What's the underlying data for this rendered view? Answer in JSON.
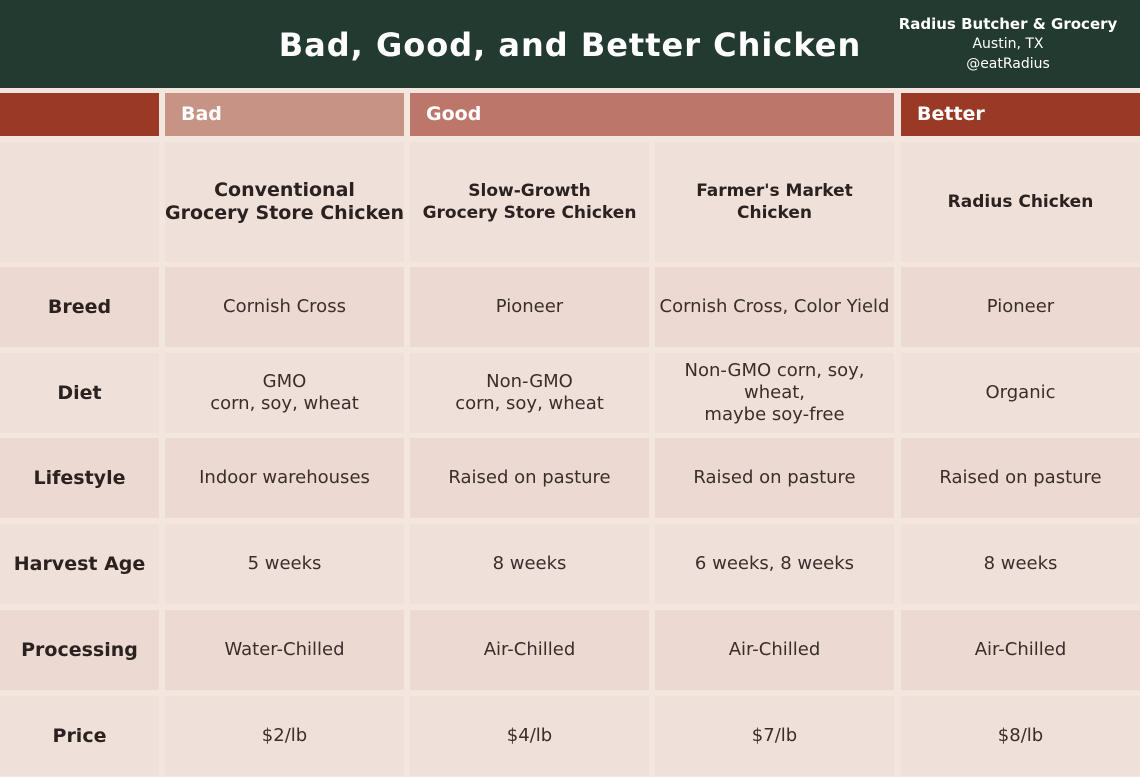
{
  "header": {
    "title": "Bad, Good, and Better Chicken",
    "brand_name": "Radius Butcher & Grocery",
    "brand_location": "Austin, TX",
    "brand_handle": "@eatRadius"
  },
  "tiers": {
    "bad": "Bad",
    "good": "Good",
    "better": "Better"
  },
  "columns": [
    {
      "line1": "Conventional",
      "line2": "Grocery Store Chicken"
    },
    {
      "line1": "Slow-Growth",
      "line2": "Grocery Store Chicken"
    },
    {
      "line1": "Farmer's Market",
      "line2": "Chicken"
    },
    {
      "line1": "Radius Chicken",
      "line2": ""
    }
  ],
  "rows": [
    {
      "label": "Breed",
      "cells": [
        {
          "line1": "Cornish Cross",
          "line2": ""
        },
        {
          "line1": "Pioneer",
          "line2": ""
        },
        {
          "line1": "Cornish Cross, Color Yield",
          "line2": ""
        },
        {
          "line1": "Pioneer",
          "line2": ""
        }
      ]
    },
    {
      "label": "Diet",
      "cells": [
        {
          "line1": "GMO",
          "line2": "corn, soy, wheat"
        },
        {
          "line1": "Non-GMO",
          "line2": "corn, soy, wheat"
        },
        {
          "line1": "Non-GMO corn, soy, wheat,",
          "line2": "maybe soy-free"
        },
        {
          "line1": "Organic",
          "line2": ""
        }
      ]
    },
    {
      "label": "Lifestyle",
      "cells": [
        {
          "line1": "Indoor warehouses",
          "line2": ""
        },
        {
          "line1": "Raised on pasture",
          "line2": ""
        },
        {
          "line1": "Raised on pasture",
          "line2": ""
        },
        {
          "line1": "Raised on pasture",
          "line2": ""
        }
      ]
    },
    {
      "label": "Harvest Age",
      "cells": [
        {
          "line1": "5 weeks",
          "line2": ""
        },
        {
          "line1": "8 weeks",
          "line2": ""
        },
        {
          "line1": "6 weeks, 8 weeks",
          "line2": ""
        },
        {
          "line1": "8 weeks",
          "line2": ""
        }
      ]
    },
    {
      "label": "Processing",
      "cells": [
        {
          "line1": "Water-Chilled",
          "line2": ""
        },
        {
          "line1": "Air-Chilled",
          "line2": ""
        },
        {
          "line1": "Air-Chilled",
          "line2": ""
        },
        {
          "line1": "Air-Chilled",
          "line2": ""
        }
      ]
    },
    {
      "label": "Price",
      "cells": [
        {
          "line1": "$2/lb",
          "line2": ""
        },
        {
          "line1": "$4/lb",
          "line2": ""
        },
        {
          "line1": "$7/lb",
          "line2": ""
        },
        {
          "line1": "$8/lb",
          "line2": ""
        }
      ]
    }
  ]
}
